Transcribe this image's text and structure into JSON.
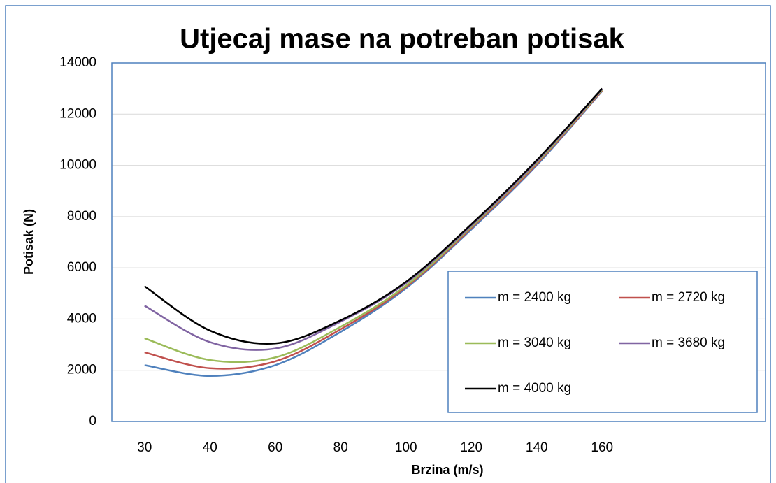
{
  "chart_data": {
    "type": "line",
    "title": "Utjecaj mase na potreban potisak",
    "x_label": "Brzina (m/s)",
    "y_label": "Potisak (N)",
    "categories": [
      "30",
      "40",
      "60",
      "80",
      "100",
      "120",
      "140",
      "160",
      null,
      null
    ],
    "series": [
      {
        "name": "m = 2400 kg",
        "color": "#4f81bd",
        "values": [
          2200,
          1780,
          2200,
          3500,
          5200,
          7500,
          10000,
          12900,
          null,
          null
        ]
      },
      {
        "name": "m = 2720 kg",
        "color": "#c0504d",
        "values": [
          2700,
          2080,
          2350,
          3600,
          5250,
          7550,
          10050,
          12920,
          null,
          null
        ]
      },
      {
        "name": "m = 3040 kg",
        "color": "#9bbb59",
        "values": [
          3250,
          2400,
          2500,
          3700,
          5300,
          7600,
          10100,
          12950,
          null,
          null
        ]
      },
      {
        "name": "m = 3680 kg",
        "color": "#8064a2",
        "values": [
          4520,
          3100,
          2850,
          3900,
          5400,
          7650,
          10150,
          12980,
          null,
          null
        ]
      },
      {
        "name": "m = 4000 kg",
        "color": "#000000",
        "values": [
          5280,
          3550,
          3050,
          3950,
          5450,
          7700,
          10200,
          13000,
          null,
          null
        ]
      }
    ],
    "ylim": [
      0,
      14000
    ],
    "yticks": [
      0,
      2000,
      4000,
      6000,
      8000,
      10000,
      12000,
      14000
    ],
    "grid": true,
    "legend": "lower right"
  }
}
